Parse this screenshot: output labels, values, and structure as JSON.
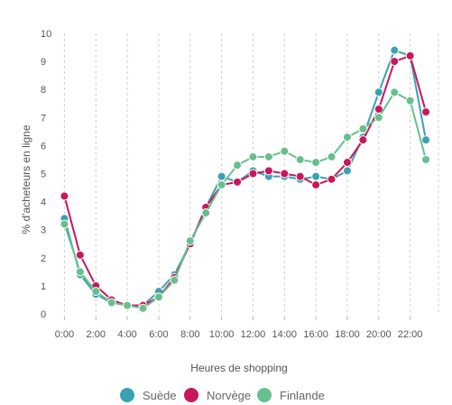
{
  "chart_data": {
    "type": "line",
    "title": "",
    "xlabel": "Heures de shopping",
    "ylabel": "% d'acheteurs en ligne",
    "x": [
      0,
      1,
      2,
      3,
      4,
      5,
      6,
      7,
      8,
      9,
      10,
      11,
      12,
      13,
      14,
      15,
      16,
      17,
      18,
      19,
      20,
      21,
      22,
      23
    ],
    "xtick_values": [
      0,
      2,
      4,
      6,
      8,
      10,
      12,
      14,
      16,
      18,
      20,
      22
    ],
    "xtick_labels": [
      "0:00",
      "2:00",
      "4:00",
      "6:00",
      "8:00",
      "10:00",
      "12:00",
      "14:00",
      "16:00",
      "18:00",
      "20:00",
      "22:00"
    ],
    "xlim": [
      -1,
      23.8
    ],
    "ylim": [
      0,
      10
    ],
    "yticks": [
      0,
      1,
      2,
      3,
      4,
      5,
      6,
      7,
      8,
      9,
      10
    ],
    "grid": "vertical-dashed",
    "legend_position": "bottom",
    "series": [
      {
        "name": "Suède",
        "color": "#3aa0b5",
        "values": [
          3.4,
          1.4,
          0.7,
          0.4,
          0.3,
          0.3,
          0.8,
          1.4,
          2.5,
          3.8,
          4.9,
          4.7,
          5.1,
          4.9,
          4.9,
          4.8,
          4.9,
          4.8,
          5.1,
          6.3,
          7.9,
          9.4,
          9.2,
          6.2
        ]
      },
      {
        "name": "Norvège",
        "color": "#c8175a",
        "values": [
          4.2,
          2.1,
          1.0,
          0.5,
          0.3,
          0.3,
          0.6,
          1.3,
          2.5,
          3.8,
          4.6,
          4.7,
          5.0,
          5.1,
          5.0,
          4.9,
          4.6,
          4.8,
          5.4,
          6.2,
          7.3,
          9.0,
          9.2,
          7.2
        ]
      },
      {
        "name": "Finlande",
        "color": "#66c08c",
        "values": [
          3.2,
          1.5,
          0.8,
          0.4,
          0.3,
          0.2,
          0.6,
          1.2,
          2.6,
          3.6,
          4.6,
          5.3,
          5.6,
          5.6,
          5.8,
          5.5,
          5.4,
          5.6,
          6.3,
          6.6,
          7.0,
          7.9,
          7.6,
          5.5
        ]
      }
    ]
  }
}
